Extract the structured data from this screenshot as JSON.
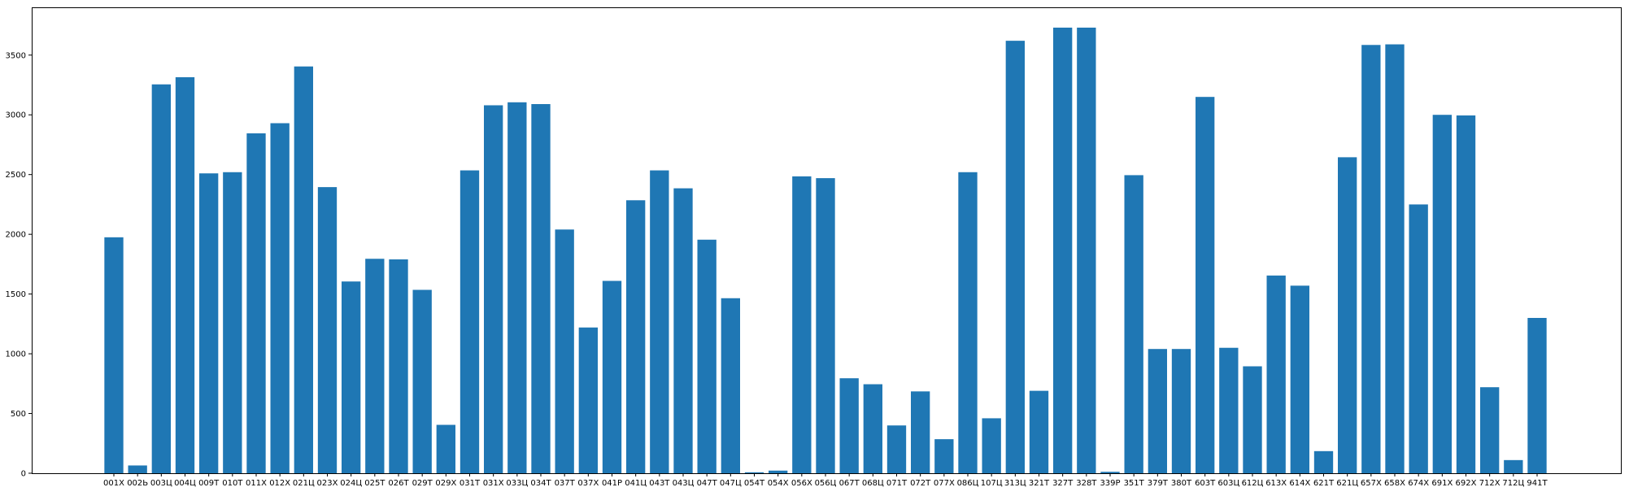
{
  "chart_data": {
    "type": "bar",
    "title": "",
    "xlabel": "",
    "ylabel": "",
    "ylim": [
      0,
      3900
    ],
    "yticks": [
      0,
      500,
      1000,
      1500,
      2000,
      2500,
      3000,
      3500
    ],
    "bar_color": "#1f77b4",
    "grid": false,
    "categories": [
      "001Х",
      "002Ь",
      "003Ц",
      "004Ц",
      "009Т",
      "010Т",
      "011Х",
      "012Х",
      "021Ц",
      "023Х",
      "024Ц",
      "025Т",
      "026Т",
      "029Т",
      "029Х",
      "031Т",
      "031Х",
      "033Ц",
      "034Т",
      "037Т",
      "037Х",
      "041Р",
      "041Ц",
      "043Т",
      "043Ц",
      "047Т",
      "047Ц",
      "054Т",
      "054Х",
      "056Х",
      "056Ц",
      "067Т",
      "068Ц",
      "071Т",
      "072Т",
      "077Х",
      "086Ц",
      "107Ц",
      "313Ц",
      "321Т",
      "327Т",
      "328Т",
      "339Р",
      "351Т",
      "379Т",
      "380Т",
      "603Т",
      "603Ц",
      "612Ц",
      "613Х",
      "614Х",
      "621Т",
      "621Ц",
      "657Х",
      "658Х",
      "674Х",
      "691Х",
      "692Х",
      "712Х",
      "712Ц",
      "941Т"
    ],
    "values": [
      1975,
      65,
      3255,
      3315,
      2510,
      2520,
      2845,
      2930,
      3405,
      2395,
      1605,
      1795,
      1790,
      1535,
      405,
      2535,
      3080,
      3105,
      3090,
      2040,
      1220,
      1610,
      2285,
      2535,
      2385,
      1955,
      1465,
      8,
      22,
      2485,
      2470,
      795,
      745,
      400,
      685,
      285,
      2520,
      460,
      3620,
      690,
      3730,
      3730,
      12,
      2495,
      1040,
      1040,
      3150,
      1050,
      895,
      1655,
      1570,
      185,
      2645,
      3585,
      3590,
      2250,
      3000,
      2995,
      720,
      110,
      1300
    ]
  }
}
